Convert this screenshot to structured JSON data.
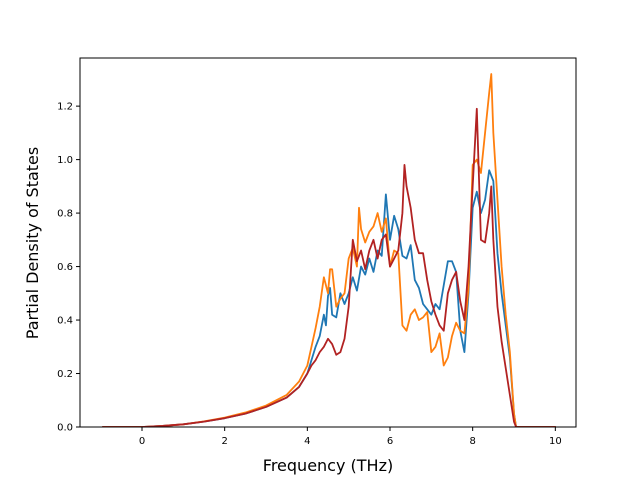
{
  "chart_data": {
    "type": "line",
    "title": "",
    "xlabel": "Frequency (THz)",
    "ylabel": "Partial Density of States",
    "xlim": [
      -1.5,
      10.5
    ],
    "ylim": [
      0.0,
      1.38
    ],
    "grid": false,
    "legend": "none",
    "x_ticks": [
      0,
      2,
      4,
      6,
      8,
      10
    ],
    "x_tick_labels": [
      "0",
      "2",
      "4",
      "6",
      "8",
      "10"
    ],
    "y_ticks": [
      0.0,
      0.2,
      0.4,
      0.6,
      0.8,
      1.0,
      1.2
    ],
    "y_tick_labels": [
      "0.0",
      "0.2",
      "0.4",
      "0.6",
      "0.8",
      "1.0",
      "1.2"
    ],
    "series": [
      {
        "color": "#1f77b4",
        "points": [
          [
            -0.95,
            0
          ],
          [
            0,
            0
          ],
          [
            0.5,
            0.004
          ],
          [
            1,
            0.01
          ],
          [
            1.5,
            0.02
          ],
          [
            2,
            0.033
          ],
          [
            2.5,
            0.05
          ],
          [
            3,
            0.075
          ],
          [
            3.5,
            0.11
          ],
          [
            3.8,
            0.15
          ],
          [
            4.0,
            0.2
          ],
          [
            4.1,
            0.25
          ],
          [
            4.2,
            0.3
          ],
          [
            4.3,
            0.34
          ],
          [
            4.4,
            0.42
          ],
          [
            4.45,
            0.38
          ],
          [
            4.5,
            0.49
          ],
          [
            4.55,
            0.52
          ],
          [
            4.6,
            0.42
          ],
          [
            4.7,
            0.41
          ],
          [
            4.8,
            0.5
          ],
          [
            4.9,
            0.46
          ],
          [
            5.0,
            0.5
          ],
          [
            5.1,
            0.56
          ],
          [
            5.2,
            0.51
          ],
          [
            5.3,
            0.6
          ],
          [
            5.4,
            0.57
          ],
          [
            5.5,
            0.63
          ],
          [
            5.6,
            0.58
          ],
          [
            5.7,
            0.66
          ],
          [
            5.8,
            0.64
          ],
          [
            5.9,
            0.87
          ],
          [
            6.0,
            0.7
          ],
          [
            6.1,
            0.79
          ],
          [
            6.2,
            0.74
          ],
          [
            6.3,
            0.64
          ],
          [
            6.4,
            0.63
          ],
          [
            6.5,
            0.68
          ],
          [
            6.6,
            0.55
          ],
          [
            6.7,
            0.52
          ],
          [
            6.8,
            0.46
          ],
          [
            6.9,
            0.44
          ],
          [
            7.0,
            0.42
          ],
          [
            7.1,
            0.46
          ],
          [
            7.2,
            0.44
          ],
          [
            7.3,
            0.53
          ],
          [
            7.4,
            0.62
          ],
          [
            7.5,
            0.62
          ],
          [
            7.6,
            0.58
          ],
          [
            7.7,
            0.36
          ],
          [
            7.8,
            0.28
          ],
          [
            7.9,
            0.5
          ],
          [
            8.0,
            0.82
          ],
          [
            8.1,
            0.88
          ],
          [
            8.2,
            0.8
          ],
          [
            8.3,
            0.85
          ],
          [
            8.4,
            0.96
          ],
          [
            8.5,
            0.92
          ],
          [
            8.6,
            0.65
          ],
          [
            8.7,
            0.5
          ],
          [
            8.8,
            0.38
          ],
          [
            8.9,
            0.26
          ],
          [
            9.0,
            0.05
          ],
          [
            9.05,
            0
          ],
          [
            10,
            0
          ]
        ]
      },
      {
        "color": "#ff7f0e",
        "points": [
          [
            -0.95,
            0
          ],
          [
            0,
            0
          ],
          [
            0.5,
            0.004
          ],
          [
            1,
            0.01
          ],
          [
            1.5,
            0.021
          ],
          [
            2,
            0.035
          ],
          [
            2.5,
            0.054
          ],
          [
            3,
            0.08
          ],
          [
            3.5,
            0.12
          ],
          [
            3.8,
            0.17
          ],
          [
            4.0,
            0.23
          ],
          [
            4.1,
            0.3
          ],
          [
            4.2,
            0.37
          ],
          [
            4.3,
            0.45
          ],
          [
            4.4,
            0.56
          ],
          [
            4.5,
            0.5
          ],
          [
            4.55,
            0.59
          ],
          [
            4.6,
            0.59
          ],
          [
            4.7,
            0.45
          ],
          [
            4.8,
            0.48
          ],
          [
            4.9,
            0.5
          ],
          [
            5.0,
            0.63
          ],
          [
            5.1,
            0.67
          ],
          [
            5.2,
            0.6
          ],
          [
            5.25,
            0.82
          ],
          [
            5.3,
            0.74
          ],
          [
            5.4,
            0.69
          ],
          [
            5.5,
            0.73
          ],
          [
            5.6,
            0.75
          ],
          [
            5.7,
            0.8
          ],
          [
            5.8,
            0.73
          ],
          [
            5.9,
            0.78
          ],
          [
            6.0,
            0.6
          ],
          [
            6.1,
            0.66
          ],
          [
            6.2,
            0.65
          ],
          [
            6.3,
            0.38
          ],
          [
            6.4,
            0.36
          ],
          [
            6.5,
            0.42
          ],
          [
            6.6,
            0.44
          ],
          [
            6.7,
            0.4
          ],
          [
            6.8,
            0.41
          ],
          [
            6.9,
            0.43
          ],
          [
            7.0,
            0.28
          ],
          [
            7.1,
            0.3
          ],
          [
            7.2,
            0.35
          ],
          [
            7.3,
            0.23
          ],
          [
            7.4,
            0.26
          ],
          [
            7.5,
            0.34
          ],
          [
            7.6,
            0.39
          ],
          [
            7.7,
            0.36
          ],
          [
            7.8,
            0.35
          ],
          [
            7.9,
            0.52
          ],
          [
            8.0,
            0.98
          ],
          [
            8.1,
            1.0
          ],
          [
            8.2,
            0.95
          ],
          [
            8.3,
            1.1
          ],
          [
            8.4,
            1.25
          ],
          [
            8.45,
            1.32
          ],
          [
            8.5,
            1.1
          ],
          [
            8.6,
            0.85
          ],
          [
            8.7,
            0.6
          ],
          [
            8.8,
            0.42
          ],
          [
            8.9,
            0.28
          ],
          [
            9.0,
            0.05
          ],
          [
            9.05,
            0
          ],
          [
            10,
            0
          ]
        ]
      },
      {
        "color": "#b22222",
        "points": [
          [
            -0.95,
            0
          ],
          [
            0,
            0
          ],
          [
            0.5,
            0.004
          ],
          [
            1,
            0.01
          ],
          [
            1.5,
            0.02
          ],
          [
            2,
            0.033
          ],
          [
            2.5,
            0.05
          ],
          [
            3,
            0.075
          ],
          [
            3.5,
            0.11
          ],
          [
            3.8,
            0.15
          ],
          [
            4.0,
            0.2
          ],
          [
            4.1,
            0.23
          ],
          [
            4.2,
            0.25
          ],
          [
            4.3,
            0.28
          ],
          [
            4.4,
            0.3
          ],
          [
            4.5,
            0.33
          ],
          [
            4.6,
            0.31
          ],
          [
            4.7,
            0.27
          ],
          [
            4.8,
            0.28
          ],
          [
            4.9,
            0.33
          ],
          [
            5.0,
            0.45
          ],
          [
            5.1,
            0.7
          ],
          [
            5.2,
            0.62
          ],
          [
            5.3,
            0.66
          ],
          [
            5.4,
            0.59
          ],
          [
            5.5,
            0.66
          ],
          [
            5.6,
            0.7
          ],
          [
            5.7,
            0.63
          ],
          [
            5.8,
            0.7
          ],
          [
            5.9,
            0.72
          ],
          [
            6.0,
            0.6
          ],
          [
            6.1,
            0.63
          ],
          [
            6.2,
            0.66
          ],
          [
            6.3,
            0.8
          ],
          [
            6.35,
            0.98
          ],
          [
            6.4,
            0.9
          ],
          [
            6.5,
            0.82
          ],
          [
            6.6,
            0.7
          ],
          [
            6.7,
            0.65
          ],
          [
            6.8,
            0.65
          ],
          [
            6.9,
            0.55
          ],
          [
            7.0,
            0.47
          ],
          [
            7.1,
            0.42
          ],
          [
            7.2,
            0.38
          ],
          [
            7.3,
            0.36
          ],
          [
            7.4,
            0.5
          ],
          [
            7.5,
            0.55
          ],
          [
            7.6,
            0.58
          ],
          [
            7.7,
            0.47
          ],
          [
            7.8,
            0.4
          ],
          [
            7.9,
            0.6
          ],
          [
            8.0,
            0.9
          ],
          [
            8.1,
            1.19
          ],
          [
            8.2,
            0.7
          ],
          [
            8.3,
            0.69
          ],
          [
            8.4,
            0.8
          ],
          [
            8.45,
            0.9
          ],
          [
            8.5,
            0.7
          ],
          [
            8.6,
            0.45
          ],
          [
            8.7,
            0.32
          ],
          [
            8.8,
            0.22
          ],
          [
            8.9,
            0.12
          ],
          [
            9.0,
            0.02
          ],
          [
            9.05,
            0
          ],
          [
            10,
            0
          ]
        ]
      }
    ]
  }
}
